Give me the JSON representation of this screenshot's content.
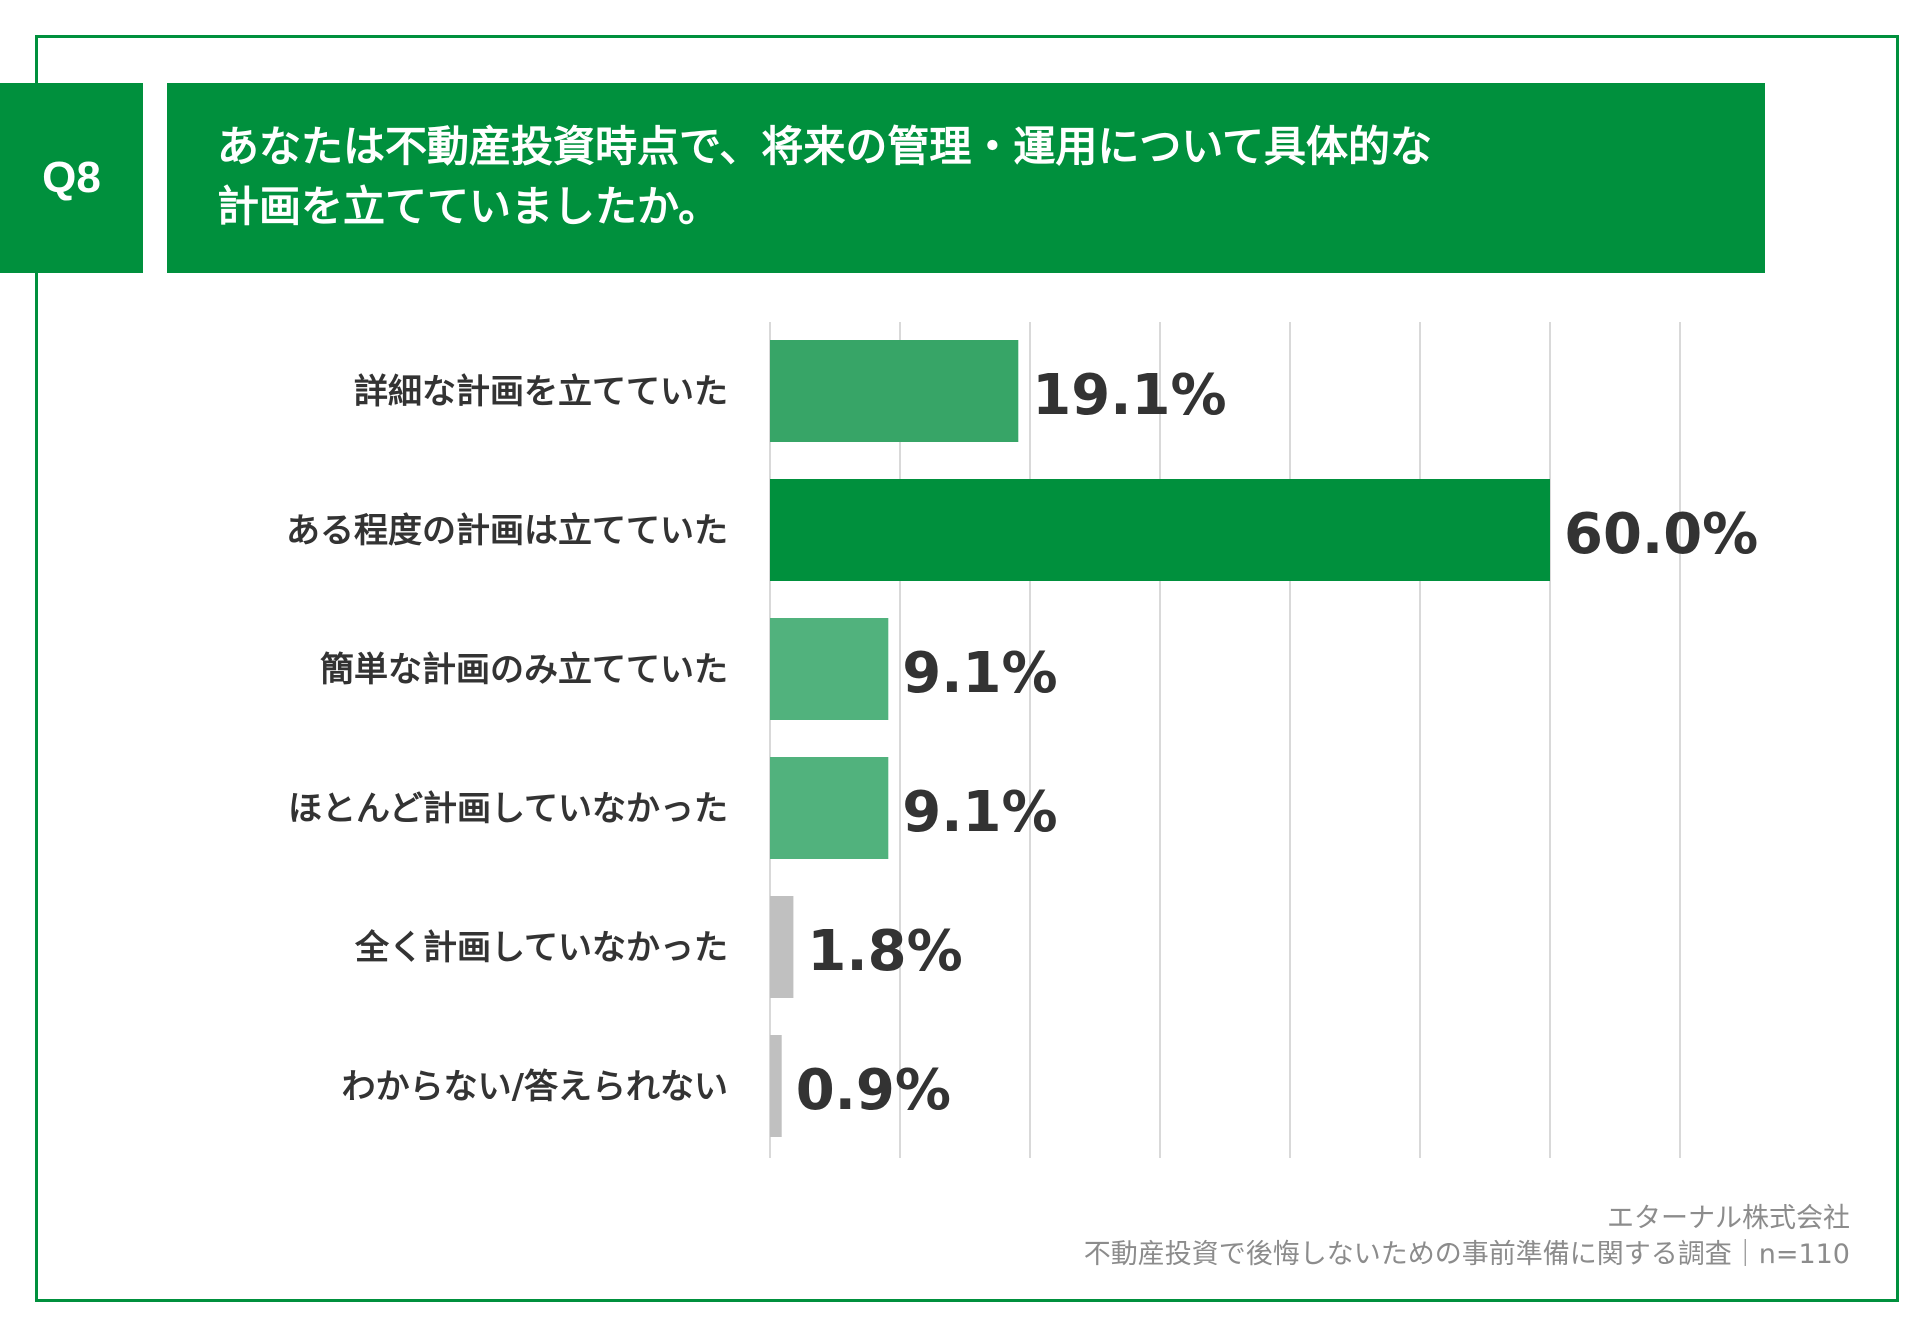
{
  "header": {
    "badge": "Q8",
    "title_line1": "あなたは不動産投資時点で、将来の管理・運用について具体的な",
    "title_line2": "計画を立てていましたか。"
  },
  "chart_data": {
    "type": "bar",
    "orientation": "horizontal",
    "categories": [
      "詳細な計画を立てていた",
      "ある程度の計画は立てていた",
      "簡単な計画のみ立てていた",
      "ほとんど計画していなかった",
      "全く計画していなかった",
      "わからない/答えられない"
    ],
    "values": [
      19.1,
      60.0,
      9.1,
      9.1,
      1.8,
      0.9
    ],
    "value_labels": [
      "19.1%",
      "60.0%",
      "9.1%",
      "9.1%",
      "1.8%",
      "0.9%"
    ],
    "colors": [
      "#37a567",
      "#00903d",
      "#51b27d",
      "#51b27d",
      "#c0c0c0",
      "#c0c0c0"
    ],
    "xlim": [
      0,
      70
    ],
    "grid": true
  },
  "footer": {
    "source_line1": "エターナル株式会社",
    "source_line2": "不動産投資で後悔しないための事前準備に関する調査｜n=110"
  }
}
